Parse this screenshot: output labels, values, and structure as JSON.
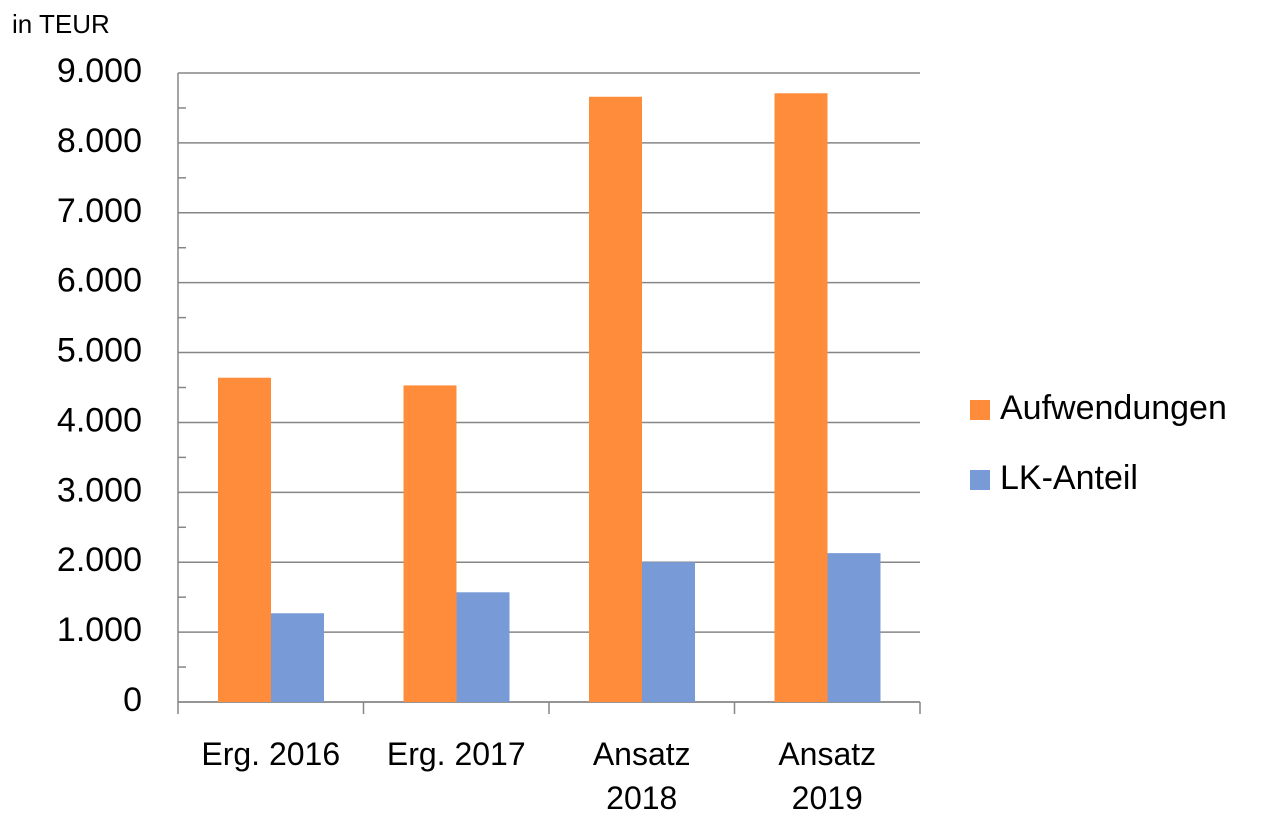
{
  "chart_data": {
    "type": "bar",
    "y_axis_label": "in TEUR",
    "categories": [
      "Erg. 2016",
      "Erg. 2017",
      "Ansatz 2018",
      "Ansatz 2019"
    ],
    "series": [
      {
        "name": "Aufwendungen",
        "color": "#ff8c3a",
        "values": [
          4640,
          4530,
          8660,
          8710
        ]
      },
      {
        "name": "LK-Anteil",
        "color": "#789bd8",
        "values": [
          1270,
          1570,
          2000,
          2130
        ]
      }
    ],
    "ylim": [
      0,
      9000
    ],
    "yticks": [
      0,
      {
        "value": 1000,
        "label": "1.000"
      },
      {
        "value": 2000,
        "label": "2.000"
      },
      {
        "value": 3000,
        "label": "3.000"
      },
      {
        "value": 4000,
        "label": "4.000"
      },
      {
        "value": 5000,
        "label": "5.000"
      },
      {
        "value": 6000,
        "label": "6.000"
      },
      {
        "value": 7000,
        "label": "7.000"
      },
      {
        "value": 8000,
        "label": "8.000"
      },
      {
        "value": 9000,
        "label": "9.000"
      }
    ],
    "grid": true,
    "legend": "right"
  }
}
